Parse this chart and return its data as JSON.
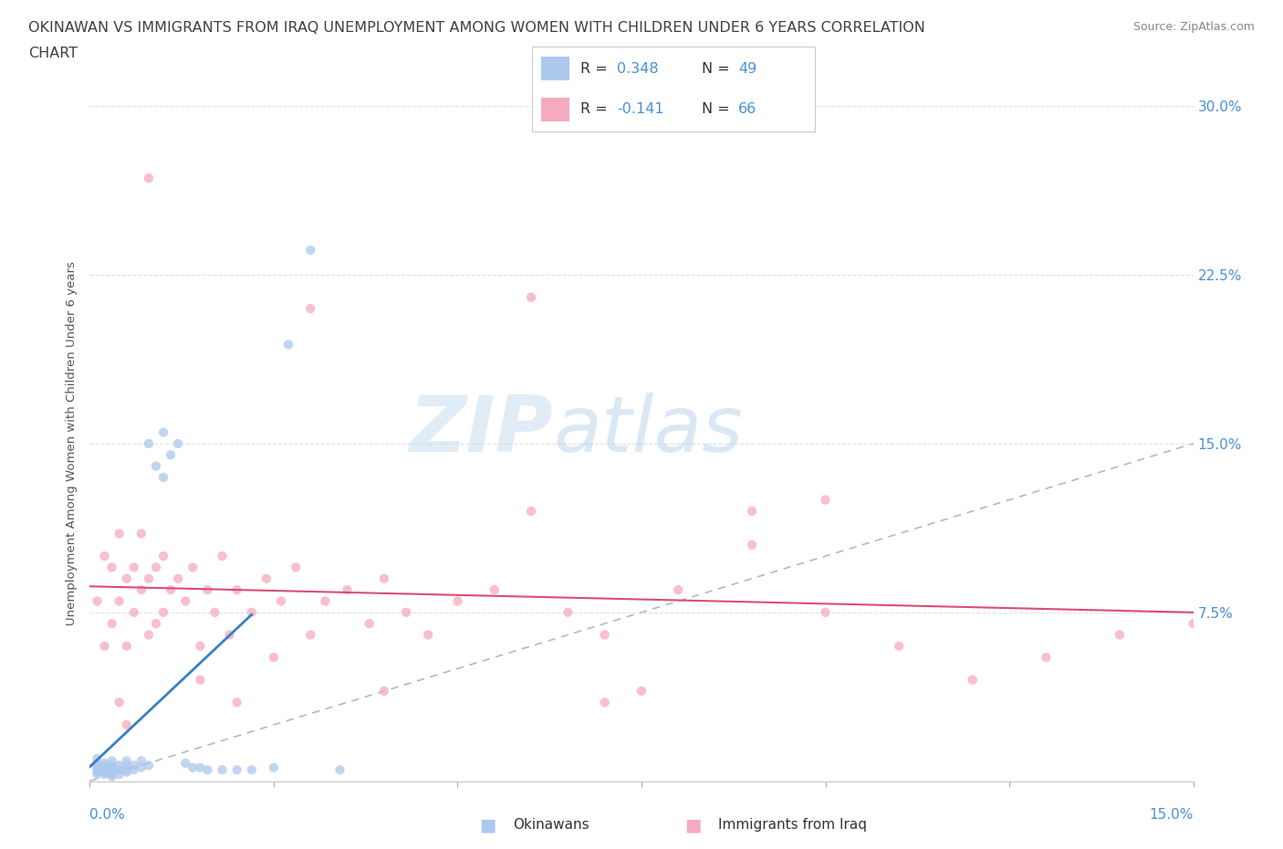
{
  "title_line1": "OKINAWAN VS IMMIGRANTS FROM IRAQ UNEMPLOYMENT AMONG WOMEN WITH CHILDREN UNDER 6 YEARS CORRELATION",
  "title_line2": "CHART",
  "source": "Source: ZipAtlas.com",
  "xmin": 0.0,
  "xmax": 0.15,
  "ymin": 0.0,
  "ymax": 0.3,
  "yticks": [
    0.075,
    0.15,
    0.225,
    0.3
  ],
  "ytick_labels": [
    "7.5%",
    "15.0%",
    "22.5%",
    "30.0%"
  ],
  "xtick_label_left": "0.0%",
  "xtick_label_right": "15.0%",
  "series1_label": "Okinawans",
  "series2_label": "Immigrants from Iraq",
  "series1_color": "#adc8ed",
  "series2_color": "#f5aabf",
  "trendline1_color": "#3a7fc1",
  "trendline2_color": "#d94f70",
  "refline_color": "#aabbcc",
  "grid_color": "#e0e0e0",
  "title_color": "#404040",
  "axis_label_color": "#4a90d9",
  "source_color": "#888888",
  "background_color": "#ffffff",
  "ylabel_text": "Unemployment Among Women with Children Under 6 years",
  "legend_r1": "0.348",
  "legend_n1": "49",
  "legend_r2": "-0.141",
  "legend_n2": "66",
  "legend_text_color": "#333333",
  "legend_value_color": "#4a90d9",
  "watermark_zip_color": "#c8ddf0",
  "watermark_atlas_color": "#b0cce8",
  "scatter_size": 55,
  "scatter_alpha": 0.75,
  "s1_x": [
    0.001,
    0.001,
    0.001,
    0.001,
    0.001,
    0.001,
    0.001,
    0.002,
    0.002,
    0.002,
    0.002,
    0.002,
    0.002,
    0.003,
    0.003,
    0.003,
    0.003,
    0.003,
    0.003,
    0.003,
    0.004,
    0.004,
    0.004,
    0.005,
    0.005,
    0.005,
    0.005,
    0.006,
    0.006,
    0.007,
    0.007,
    0.008,
    0.008,
    0.009,
    0.01,
    0.01,
    0.011,
    0.012,
    0.013,
    0.014,
    0.015,
    0.016,
    0.018,
    0.02,
    0.022,
    0.025,
    0.027,
    0.03,
    0.034
  ],
  "s1_y": [
    0.003,
    0.004,
    0.005,
    0.006,
    0.007,
    0.008,
    0.01,
    0.003,
    0.004,
    0.005,
    0.006,
    0.007,
    0.008,
    0.002,
    0.003,
    0.004,
    0.005,
    0.006,
    0.007,
    0.009,
    0.003,
    0.005,
    0.007,
    0.004,
    0.005,
    0.007,
    0.009,
    0.005,
    0.007,
    0.006,
    0.009,
    0.007,
    0.15,
    0.14,
    0.135,
    0.155,
    0.145,
    0.15,
    0.008,
    0.006,
    0.006,
    0.005,
    0.005,
    0.005,
    0.005,
    0.006,
    0.194,
    0.236,
    0.005
  ],
  "s2_x": [
    0.001,
    0.002,
    0.002,
    0.003,
    0.003,
    0.004,
    0.004,
    0.005,
    0.005,
    0.006,
    0.006,
    0.007,
    0.007,
    0.008,
    0.008,
    0.009,
    0.009,
    0.01,
    0.01,
    0.011,
    0.012,
    0.013,
    0.014,
    0.015,
    0.016,
    0.017,
    0.018,
    0.019,
    0.02,
    0.022,
    0.024,
    0.026,
    0.028,
    0.03,
    0.032,
    0.035,
    0.038,
    0.04,
    0.043,
    0.046,
    0.05,
    0.055,
    0.06,
    0.065,
    0.07,
    0.075,
    0.08,
    0.09,
    0.1,
    0.11,
    0.12,
    0.13,
    0.14,
    0.15,
    0.008,
    0.03,
    0.06,
    0.09,
    0.1,
    0.004,
    0.015,
    0.025,
    0.005,
    0.07,
    0.02,
    0.04
  ],
  "s2_y": [
    0.08,
    0.06,
    0.1,
    0.07,
    0.095,
    0.08,
    0.11,
    0.06,
    0.09,
    0.075,
    0.095,
    0.085,
    0.11,
    0.065,
    0.09,
    0.07,
    0.095,
    0.075,
    0.1,
    0.085,
    0.09,
    0.08,
    0.095,
    0.06,
    0.085,
    0.075,
    0.1,
    0.065,
    0.085,
    0.075,
    0.09,
    0.08,
    0.095,
    0.065,
    0.08,
    0.085,
    0.07,
    0.09,
    0.075,
    0.065,
    0.08,
    0.085,
    0.12,
    0.075,
    0.065,
    0.04,
    0.085,
    0.105,
    0.075,
    0.06,
    0.045,
    0.055,
    0.065,
    0.07,
    0.268,
    0.21,
    0.215,
    0.12,
    0.125,
    0.035,
    0.045,
    0.055,
    0.025,
    0.035,
    0.035,
    0.04
  ]
}
